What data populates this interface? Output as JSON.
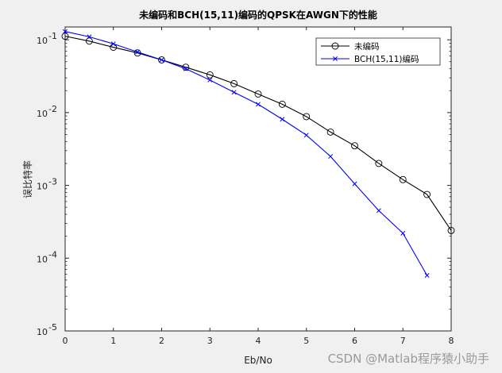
{
  "chart_data": {
    "type": "line",
    "title": "未编码和BCH(15,11)编码的QPSK在AWGN下的性能",
    "xlabel": "Eb/No",
    "ylabel": "误比特率",
    "xlim": [
      0,
      8
    ],
    "ylim": [
      1e-05,
      0.15
    ],
    "yscale": "log",
    "grid": false,
    "legend_position": "top-right",
    "x_ticks": [
      "0",
      "1",
      "2",
      "3",
      "4",
      "5",
      "6",
      "7",
      "8"
    ],
    "y_ticks": [
      {
        "base": "10",
        "exp": "-1",
        "value": 0.1
      },
      {
        "base": "10",
        "exp": "-2",
        "value": 0.01
      },
      {
        "base": "10",
        "exp": "-3",
        "value": 0.001
      },
      {
        "base": "10",
        "exp": "-4",
        "value": 0.0001
      },
      {
        "base": "10",
        "exp": "-5",
        "value": 1e-05
      }
    ],
    "series": [
      {
        "name": "未编码",
        "color": "#000000",
        "marker": "circle",
        "x": [
          0,
          0.5,
          1,
          1.5,
          2,
          2.5,
          3,
          3.5,
          4,
          4.5,
          5,
          5.5,
          6,
          6.5,
          7,
          7.5,
          8
        ],
        "y": [
          0.112,
          0.096,
          0.079,
          0.066,
          0.053,
          0.042,
          0.033,
          0.025,
          0.018,
          0.013,
          0.0088,
          0.0054,
          0.0035,
          0.002,
          0.0012,
          0.00075,
          0.00024
        ]
      },
      {
        "name": "BCH(15,11)编码",
        "color": "#0000ff",
        "marker": "x",
        "x": [
          0,
          0.5,
          1,
          1.5,
          2,
          2.5,
          3,
          3.5,
          4,
          4.5,
          5,
          5.5,
          6,
          6.5,
          7,
          7.5
        ],
        "y": [
          0.13,
          0.11,
          0.088,
          0.068,
          0.053,
          0.04,
          0.028,
          0.019,
          0.013,
          0.0081,
          0.0049,
          0.0025,
          0.00105,
          0.00045,
          0.00022,
          5.8e-05
        ]
      }
    ]
  },
  "watermark": "CSDN @Matlab程序猿小助手"
}
